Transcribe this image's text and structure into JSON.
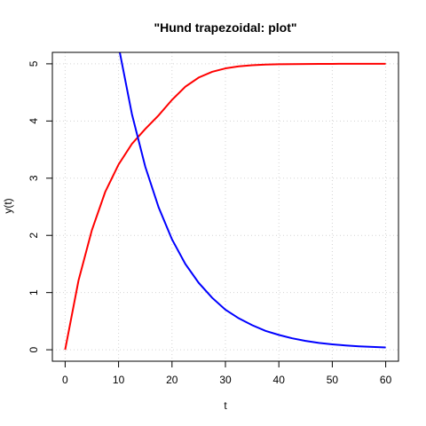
{
  "chart_data": {
    "type": "line",
    "title": "\"Hund trapezoidal: plot\"",
    "xlabel": "t",
    "ylabel": "y(t)",
    "xlim": [
      0,
      60
    ],
    "ylim": [
      0,
      5
    ],
    "xticks": [
      0,
      10,
      20,
      30,
      40,
      50,
      60
    ],
    "yticks": [
      0,
      1,
      2,
      3,
      4,
      5
    ],
    "grid": true,
    "x": [
      0,
      2.5,
      5,
      7.5,
      10,
      12.5,
      15,
      17.5,
      20,
      22.5,
      25,
      27.5,
      30,
      32.5,
      35,
      37.5,
      40,
      42.5,
      45,
      47.5,
      50,
      52.5,
      55,
      57.5,
      60
    ],
    "series": [
      {
        "color": "#ff0000",
        "values": [
          0.0,
          1.21,
          2.09,
          2.76,
          3.24,
          3.6,
          3.86,
          4.1,
          4.37,
          4.6,
          4.76,
          4.86,
          4.92,
          4.955,
          4.975,
          4.986,
          4.992,
          4.995,
          4.997,
          4.998,
          4.999,
          5.0,
          5.0,
          5.0,
          5.0
        ]
      },
      {
        "color": "#0000ff",
        "values": [
          null,
          null,
          null,
          null,
          5.31,
          4.12,
          3.2,
          2.49,
          1.93,
          1.5,
          1.17,
          0.91,
          0.7,
          0.55,
          0.43,
          0.33,
          0.26,
          0.2,
          0.155,
          0.12,
          0.095,
          0.075,
          0.06,
          0.05,
          0.04
        ]
      }
    ]
  }
}
